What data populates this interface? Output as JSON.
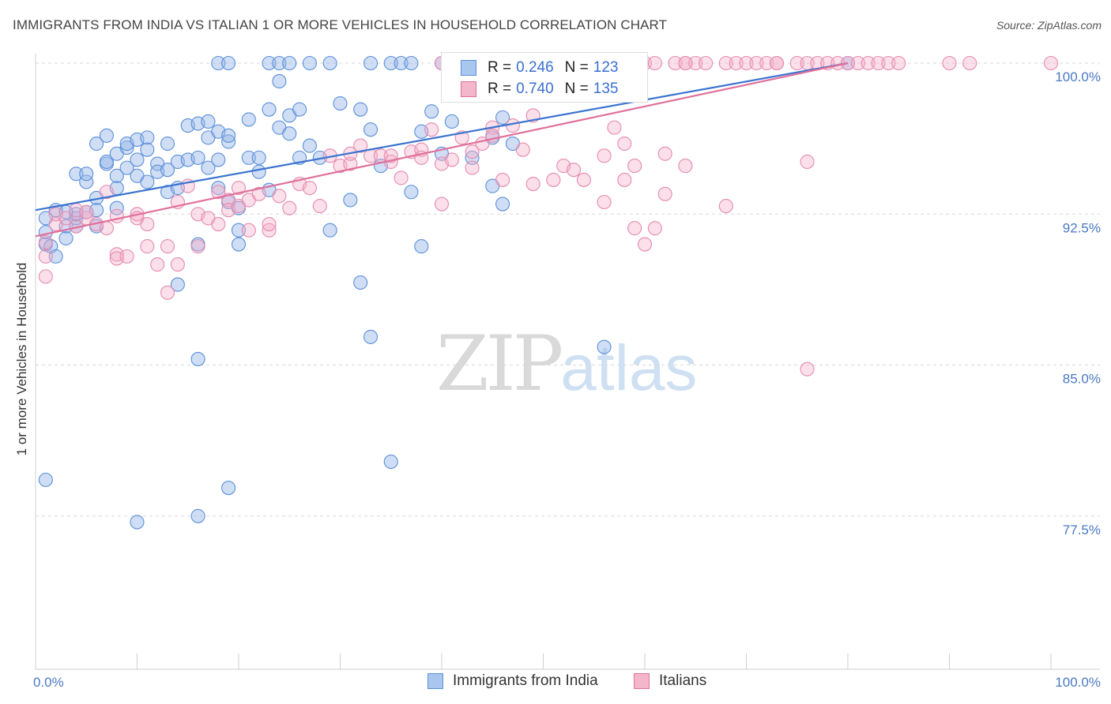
{
  "title": "IMMIGRANTS FROM INDIA VS ITALIAN 1 OR MORE VEHICLES IN HOUSEHOLD CORRELATION CHART",
  "source": "Source: ZipAtlas.com",
  "watermark": {
    "zip": "ZIP",
    "atlas": "atlas"
  },
  "legend": {
    "r_label": "R =",
    "n_label": "N =",
    "india": {
      "r": "0.246",
      "n": "123"
    },
    "italians": {
      "r": "0.740",
      "n": "135"
    }
  },
  "colors": {
    "india": "#5b8fd9",
    "india_fill": "#a9c6ee",
    "italians": "#e0709a",
    "italians_fill": "#f4b6ca",
    "tick": "#4a78c4"
  },
  "chart_data": {
    "type": "scatter",
    "title": "IMMIGRANTS FROM INDIA VS ITALIAN 1 OR MORE VEHICLES IN HOUSEHOLD CORRELATION CHART",
    "xlabel": "",
    "ylabel": "1 or more Vehicles in Household",
    "xlim": [
      0,
      100
    ],
    "ylim": [
      70,
      101
    ],
    "x_ticks": [
      "0.0%",
      "100.0%"
    ],
    "y_ticks": [
      {
        "v": 100,
        "label": "100.0%"
      },
      {
        "v": 92.5,
        "label": "92.5%"
      },
      {
        "v": 85,
        "label": "85.0%"
      },
      {
        "v": 77.5,
        "label": "77.5%"
      }
    ],
    "grid": "horizontal dashed",
    "legend_position": "top-center",
    "series": [
      {
        "name": "Immigrants from India",
        "trend": [
          [
            0,
            92.7
          ],
          [
            80,
            100.0
          ]
        ],
        "points": [
          [
            1,
            92.3
          ],
          [
            1,
            91.6
          ],
          [
            1,
            91.0
          ],
          [
            1.5,
            90.9
          ],
          [
            2,
            90.4
          ],
          [
            2,
            92.7
          ],
          [
            3,
            91.3
          ],
          [
            3,
            91.9
          ],
          [
            4,
            91.9
          ],
          [
            4,
            94.5
          ],
          [
            4,
            92.3
          ],
          [
            5,
            94.1
          ],
          [
            5,
            94.5
          ],
          [
            5,
            92.6
          ],
          [
            6,
            93.3
          ],
          [
            6,
            91.9
          ],
          [
            6,
            96.0
          ],
          [
            7,
            95.0
          ],
          [
            7,
            95.1
          ],
          [
            7,
            96.4
          ],
          [
            8,
            93.8
          ],
          [
            8,
            95.5
          ],
          [
            8,
            94.4
          ],
          [
            9,
            94.8
          ],
          [
            9,
            95.8
          ],
          [
            9,
            96.0
          ],
          [
            10,
            95.2
          ],
          [
            10,
            94.4
          ],
          [
            10,
            96.2
          ],
          [
            11,
            96.3
          ],
          [
            11,
            94.1
          ],
          [
            11,
            95.7
          ],
          [
            12,
            95.0
          ],
          [
            12,
            94.6
          ],
          [
            13,
            96.0
          ],
          [
            13,
            93.6
          ],
          [
            13,
            94.7
          ],
          [
            14,
            95.1
          ],
          [
            14,
            93.8
          ],
          [
            14,
            89.0
          ],
          [
            15,
            96.9
          ],
          [
            15,
            95.2
          ],
          [
            16,
            97.0
          ],
          [
            16,
            95.3
          ],
          [
            16,
            91.0
          ],
          [
            17,
            97.1
          ],
          [
            17,
            94.8
          ],
          [
            17,
            96.3
          ],
          [
            18,
            96.6
          ],
          [
            18,
            93.8
          ],
          [
            18,
            95.2
          ],
          [
            19,
            96.1
          ],
          [
            19,
            93.1
          ],
          [
            19,
            96.4
          ],
          [
            20,
            92.8
          ],
          [
            20,
            91.0
          ],
          [
            20,
            91.7
          ],
          [
            21,
            97.2
          ],
          [
            21,
            95.3
          ],
          [
            22,
            95.3
          ],
          [
            22,
            94.6
          ],
          [
            23,
            97.7
          ],
          [
            23,
            93.7
          ],
          [
            24,
            96.8
          ],
          [
            24,
            99.1
          ],
          [
            25,
            97.4
          ],
          [
            25,
            96.5
          ],
          [
            26,
            97.7
          ],
          [
            26,
            95.3
          ],
          [
            27,
            95.9
          ],
          [
            28,
            95.3
          ],
          [
            29,
            91.7
          ],
          [
            30,
            98.0
          ],
          [
            31,
            93.2
          ],
          [
            32,
            97.7
          ],
          [
            32,
            89.1
          ],
          [
            33,
            86.4
          ],
          [
            33,
            96.7
          ],
          [
            34,
            94.9
          ],
          [
            35,
            80.2
          ],
          [
            37,
            93.6
          ],
          [
            38,
            90.9
          ],
          [
            38,
            96.6
          ],
          [
            39,
            97.6
          ],
          [
            40,
            95.5
          ],
          [
            41,
            97.1
          ],
          [
            43,
            95.3
          ],
          [
            45,
            93.9
          ],
          [
            45,
            96.3
          ],
          [
            46,
            93.0
          ],
          [
            46,
            97.3
          ],
          [
            47,
            96.0
          ],
          [
            52,
            100
          ],
          [
            56,
            85.9
          ],
          [
            80,
            100
          ],
          [
            18,
            100
          ],
          [
            19,
            100
          ],
          [
            23,
            100
          ],
          [
            24,
            100
          ],
          [
            25,
            100
          ],
          [
            27,
            100
          ],
          [
            33,
            100
          ],
          [
            35,
            100
          ],
          [
            36,
            100
          ],
          [
            40,
            100
          ],
          [
            41,
            100
          ],
          [
            43,
            99.7
          ],
          [
            49,
            100
          ],
          [
            50,
            99.8
          ],
          [
            41,
            100
          ],
          [
            37,
            100
          ],
          [
            29,
            100
          ],
          [
            44,
            99.9
          ],
          [
            48,
            100
          ],
          [
            6,
            92.7
          ],
          [
            8,
            92.8
          ],
          [
            4,
            92.5
          ],
          [
            3,
            92.6
          ],
          [
            1,
            79.3
          ],
          [
            10,
            77.2
          ],
          [
            16,
            77.5
          ],
          [
            19,
            78.9
          ],
          [
            16,
            85.3
          ]
        ]
      },
      {
        "name": "Italians",
        "trend": [
          [
            0,
            91.4
          ],
          [
            80,
            100.0
          ]
        ],
        "points": [
          [
            1,
            91.1
          ],
          [
            1,
            90.4
          ],
          [
            1,
            89.4
          ],
          [
            2,
            92.0
          ],
          [
            2,
            92.5
          ],
          [
            3,
            92.3
          ],
          [
            4,
            92.7
          ],
          [
            4,
            91.9
          ],
          [
            5,
            92.3
          ],
          [
            5,
            92.6
          ],
          [
            6,
            92.0
          ],
          [
            7,
            91.8
          ],
          [
            7,
            93.6
          ],
          [
            8,
            92.4
          ],
          [
            8,
            90.5
          ],
          [
            8,
            90.3
          ],
          [
            9,
            90.4
          ],
          [
            10,
            92.5
          ],
          [
            10,
            92.3
          ],
          [
            11,
            92.0
          ],
          [
            11,
            90.9
          ],
          [
            12,
            90.0
          ],
          [
            13,
            88.6
          ],
          [
            13,
            90.9
          ],
          [
            14,
            93.1
          ],
          [
            14,
            90.0
          ],
          [
            15,
            93.9
          ],
          [
            16,
            92.5
          ],
          [
            16,
            90.9
          ],
          [
            17,
            92.3
          ],
          [
            18,
            93.6
          ],
          [
            18,
            92.0
          ],
          [
            19,
            93.2
          ],
          [
            19,
            92.7
          ],
          [
            20,
            92.9
          ],
          [
            20,
            93.8
          ],
          [
            21,
            91.7
          ],
          [
            21,
            93.2
          ],
          [
            22,
            93.5
          ],
          [
            23,
            91.7
          ],
          [
            23,
            92.0
          ],
          [
            24,
            93.4
          ],
          [
            25,
            92.8
          ],
          [
            26,
            94.0
          ],
          [
            27,
            93.8
          ],
          [
            28,
            92.9
          ],
          [
            29,
            95.4
          ],
          [
            30,
            94.9
          ],
          [
            31,
            95.0
          ],
          [
            31,
            95.5
          ],
          [
            32,
            95.9
          ],
          [
            33,
            95.4
          ],
          [
            34,
            95.4
          ],
          [
            35,
            95.1
          ],
          [
            35,
            95.4
          ],
          [
            36,
            94.3
          ],
          [
            37,
            95.6
          ],
          [
            38,
            95.7
          ],
          [
            38,
            95.3
          ],
          [
            39,
            96.7
          ],
          [
            40,
            95.0
          ],
          [
            40,
            93.0
          ],
          [
            41,
            95.2
          ],
          [
            42,
            96.3
          ],
          [
            43,
            94.8
          ],
          [
            43,
            95.6
          ],
          [
            44,
            96.0
          ],
          [
            45,
            96.8
          ],
          [
            45,
            96.4
          ],
          [
            46,
            94.2
          ],
          [
            47,
            96.9
          ],
          [
            48,
            95.7
          ],
          [
            49,
            97.4
          ],
          [
            49,
            94.0
          ],
          [
            50,
            99.1
          ],
          [
            51,
            94.2
          ],
          [
            52,
            94.9
          ],
          [
            53,
            99.5
          ],
          [
            53,
            94.7
          ],
          [
            54,
            94.2
          ],
          [
            56,
            95.4
          ],
          [
            56,
            93.1
          ],
          [
            57,
            96.8
          ],
          [
            58,
            96.0
          ],
          [
            58,
            94.2
          ],
          [
            59,
            94.9
          ],
          [
            59,
            91.8
          ],
          [
            60,
            91.0
          ],
          [
            61,
            91.8
          ],
          [
            62,
            93.5
          ],
          [
            62,
            95.5
          ],
          [
            64,
            94.9
          ],
          [
            68,
            92.9
          ],
          [
            76,
            95.1
          ],
          [
            76,
            84.8
          ],
          [
            40,
            100
          ],
          [
            43,
            100
          ],
          [
            47,
            100
          ],
          [
            48,
            100
          ],
          [
            51,
            100
          ],
          [
            53,
            100
          ],
          [
            54,
            100
          ],
          [
            55,
            100
          ],
          [
            57,
            100
          ],
          [
            58,
            100
          ],
          [
            60,
            100
          ],
          [
            61,
            100
          ],
          [
            63,
            100
          ],
          [
            64,
            100
          ],
          [
            65,
            100
          ],
          [
            66,
            100
          ],
          [
            68,
            100
          ],
          [
            69,
            100
          ],
          [
            70,
            100
          ],
          [
            71,
            100
          ],
          [
            72,
            100
          ],
          [
            73,
            100
          ],
          [
            75,
            100
          ],
          [
            76,
            100
          ],
          [
            77,
            100
          ],
          [
            78,
            100
          ],
          [
            79,
            100
          ],
          [
            80,
            100
          ],
          [
            81,
            100
          ],
          [
            82,
            100
          ],
          [
            83,
            100
          ],
          [
            84,
            100
          ],
          [
            85,
            100
          ],
          [
            90,
            100
          ],
          [
            92,
            100
          ],
          [
            100,
            100
          ],
          [
            64,
            100
          ],
          [
            59,
            99.7
          ],
          [
            56,
            99.1
          ],
          [
            73,
            100
          ]
        ]
      }
    ]
  },
  "axis": {
    "y_title": "1 or more Vehicles in Household",
    "x_min_label": "0.0%",
    "x_max_label": "100.0%"
  },
  "bottom_legend": {
    "india": "Immigrants from India",
    "italians": "Italians"
  }
}
